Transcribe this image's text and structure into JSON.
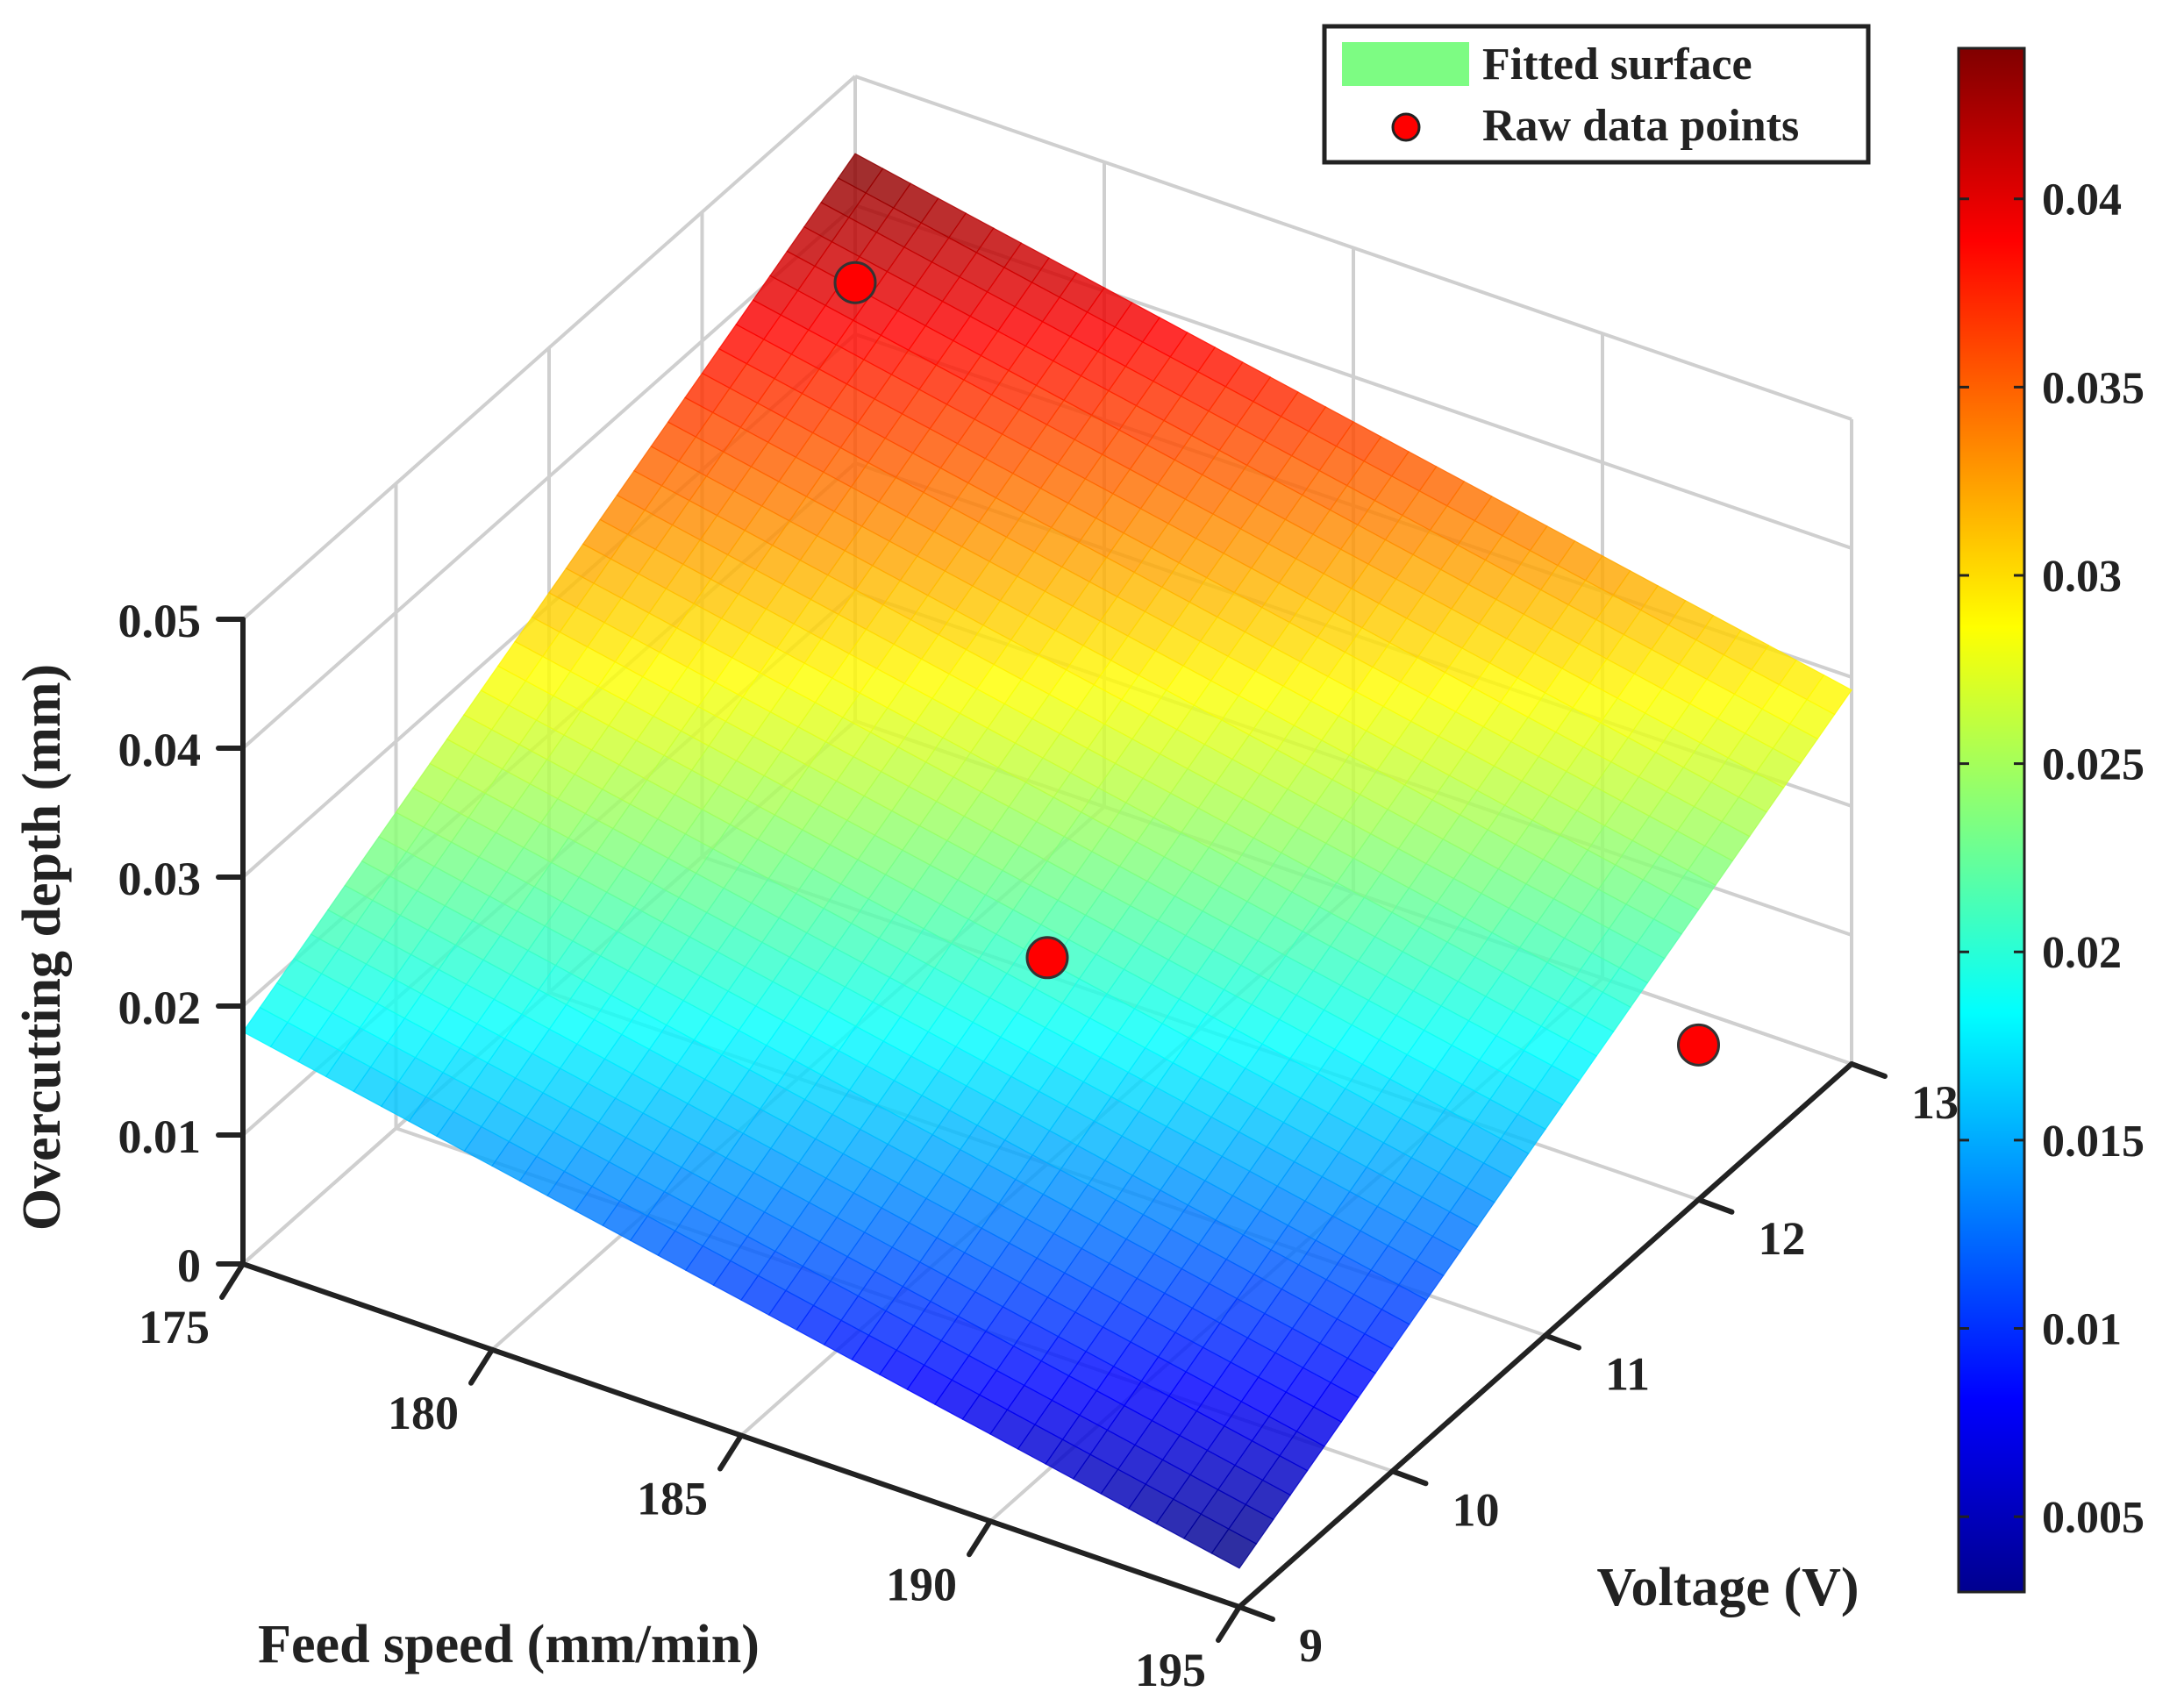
{
  "chart_data": {
    "type": "surface",
    "xlabel": "Feed speed (mm/min)",
    "ylabel": "Voltage (V)",
    "zlabel": "Overcutting depth (mm)",
    "x_ticks": [
      "175",
      "180",
      "185",
      "190",
      "195"
    ],
    "y_ticks": [
      "9",
      "10",
      "11",
      "12",
      "13"
    ],
    "z_ticks": [
      "0",
      "0.01",
      "0.02",
      "0.03",
      "0.04",
      "0.05"
    ],
    "xlim": [
      175,
      195
    ],
    "ylim": [
      9,
      13
    ],
    "zlim": [
      0,
      0.05
    ],
    "surface": {
      "name": "Fitted surface",
      "corners": {
        "x175_y9": 0.018,
        "x175_y13": 0.044,
        "x195_y9": 0.003,
        "x195_y13": 0.029
      }
    },
    "points": {
      "name": "Raw data points",
      "values": [
        {
          "x": 175,
          "y": 13,
          "z": 0.034
        },
        {
          "x": 185,
          "y": 11,
          "z": 0.016
        },
        {
          "x": 195,
          "y": 12,
          "z": 0.012
        }
      ]
    },
    "colorbar": {
      "colormap": "jet",
      "range": [
        0.003,
        0.044
      ],
      "ticks": [
        "0.005",
        "0.01",
        "0.015",
        "0.02",
        "0.025",
        "0.03",
        "0.035",
        "0.04"
      ]
    },
    "legend": {
      "position": "top-right",
      "entries": [
        "Fitted surface",
        "Raw data points"
      ],
      "surface_swatch_color": "#7dfc83",
      "point_color": "#ff0000"
    },
    "grid": true
  }
}
